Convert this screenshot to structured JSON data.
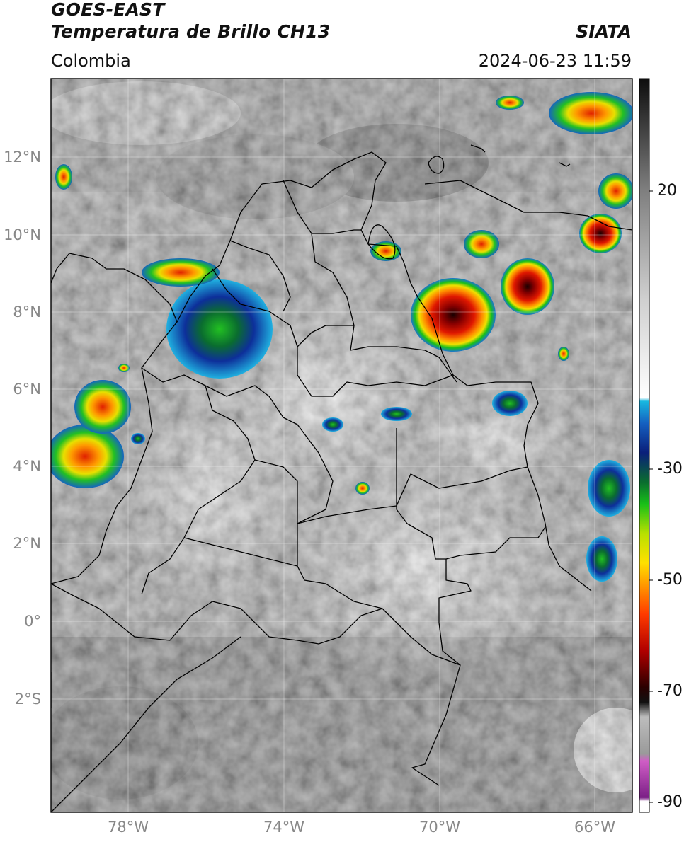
{
  "header": {
    "satellite": "GOES-EAST",
    "product": "Temperatura de Brillo CH13",
    "region": "Colombia",
    "organization": "SIATA",
    "datetime": "2024-06-23 11:59"
  },
  "axes": {
    "y_ticks": [
      {
        "label": "12°N",
        "lat": 12
      },
      {
        "label": "10°N",
        "lat": 10
      },
      {
        "label": "8°N",
        "lat": 8
      },
      {
        "label": "6°N",
        "lat": 6
      },
      {
        "label": "4°N",
        "lat": 4
      },
      {
        "label": "2°N",
        "lat": 2
      },
      {
        "label": "0°",
        "lat": 0
      },
      {
        "label": "2°S",
        "lat": -2
      }
    ],
    "x_ticks": [
      {
        "label": "78°W",
        "lon": -78
      },
      {
        "label": "74°W",
        "lon": -74
      },
      {
        "label": "70°W",
        "lon": -70
      },
      {
        "label": "66°W",
        "lon": -66
      }
    ],
    "lon_range": [
      -80,
      -65
    ],
    "lat_range": [
      -5,
      14
    ]
  },
  "colorbar": {
    "ticks": [
      {
        "label": "20",
        "value": 20
      },
      {
        "label": "-30",
        "value": -30
      },
      {
        "label": "-50",
        "value": -50
      },
      {
        "label": "-70",
        "value": -70
      },
      {
        "label": "-90",
        "value": -90
      }
    ],
    "range": [
      -93,
      40
    ]
  },
  "colors": {
    "cold_cloud": "#1a3d8f",
    "convective_core": "#d11a0a",
    "warm_clear": "#5f5f5f"
  }
}
